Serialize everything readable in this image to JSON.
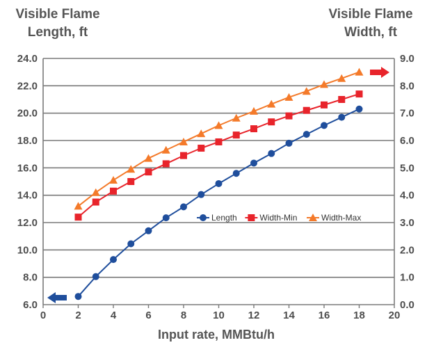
{
  "chart_data": {
    "type": "line",
    "ylabel_left_line1": "Visible Flame",
    "ylabel_left_line2": "Length, ft",
    "ylabel_right_line1": "Visible Flame",
    "ylabel_right_line2": "Width, ft",
    "xlabel": "Input rate, MMBtu/h",
    "xlim": [
      0,
      20
    ],
    "ylim_left": [
      6.0,
      24.0
    ],
    "ylim_right": [
      0.0,
      9.0
    ],
    "x_ticks": [
      "0",
      "2",
      "4",
      "6",
      "8",
      "10",
      "12",
      "14",
      "16",
      "18",
      "20"
    ],
    "y_left_ticks": [
      "6.0",
      "8.0",
      "10.0",
      "12.0",
      "14.0",
      "16.0",
      "18.0",
      "20.0",
      "22.0",
      "24.0"
    ],
    "y_right_ticks": [
      "0.0",
      "1.0",
      "2.0",
      "3.0",
      "4.0",
      "5.0",
      "6.0",
      "7.0",
      "8.0",
      "9.0"
    ],
    "grid": "horizontal",
    "legend_position": "center-right",
    "series": [
      {
        "name": "Length",
        "axis": "left",
        "color": "#1f4e9c",
        "marker": "circle",
        "x": [
          2,
          3,
          4,
          5,
          6,
          7,
          8,
          9,
          10,
          11,
          12,
          13,
          14,
          15,
          16,
          17,
          18
        ],
        "values": [
          6.6,
          8.05,
          9.3,
          10.45,
          11.4,
          12.35,
          13.15,
          14.05,
          14.85,
          15.6,
          16.35,
          17.05,
          17.8,
          18.45,
          19.1,
          19.7,
          20.3
        ]
      },
      {
        "name": "Width-Min",
        "axis": "right",
        "color": "#e8242b",
        "marker": "square",
        "x": [
          2,
          3,
          4,
          5,
          6,
          7,
          8,
          9,
          10,
          11,
          12,
          13,
          14,
          15,
          16,
          17,
          18
        ],
        "values": [
          3.2,
          3.75,
          4.15,
          4.5,
          4.85,
          5.15,
          5.45,
          5.72,
          5.95,
          6.2,
          6.43,
          6.68,
          6.9,
          7.1,
          7.3,
          7.5,
          7.7
        ]
      },
      {
        "name": "Width-Max",
        "axis": "right",
        "color": "#f47a2a",
        "marker": "triangle",
        "x": [
          2,
          3,
          4,
          5,
          6,
          7,
          8,
          9,
          10,
          11,
          12,
          13,
          14,
          15,
          16,
          17,
          18
        ],
        "values": [
          3.6,
          4.1,
          4.55,
          4.95,
          5.35,
          5.65,
          5.95,
          6.25,
          6.55,
          6.82,
          7.07,
          7.33,
          7.58,
          7.8,
          8.05,
          8.27,
          8.5
        ]
      }
    ],
    "arrow_left_color": "#1f4e9c",
    "arrow_right_color": "#e8242b"
  }
}
